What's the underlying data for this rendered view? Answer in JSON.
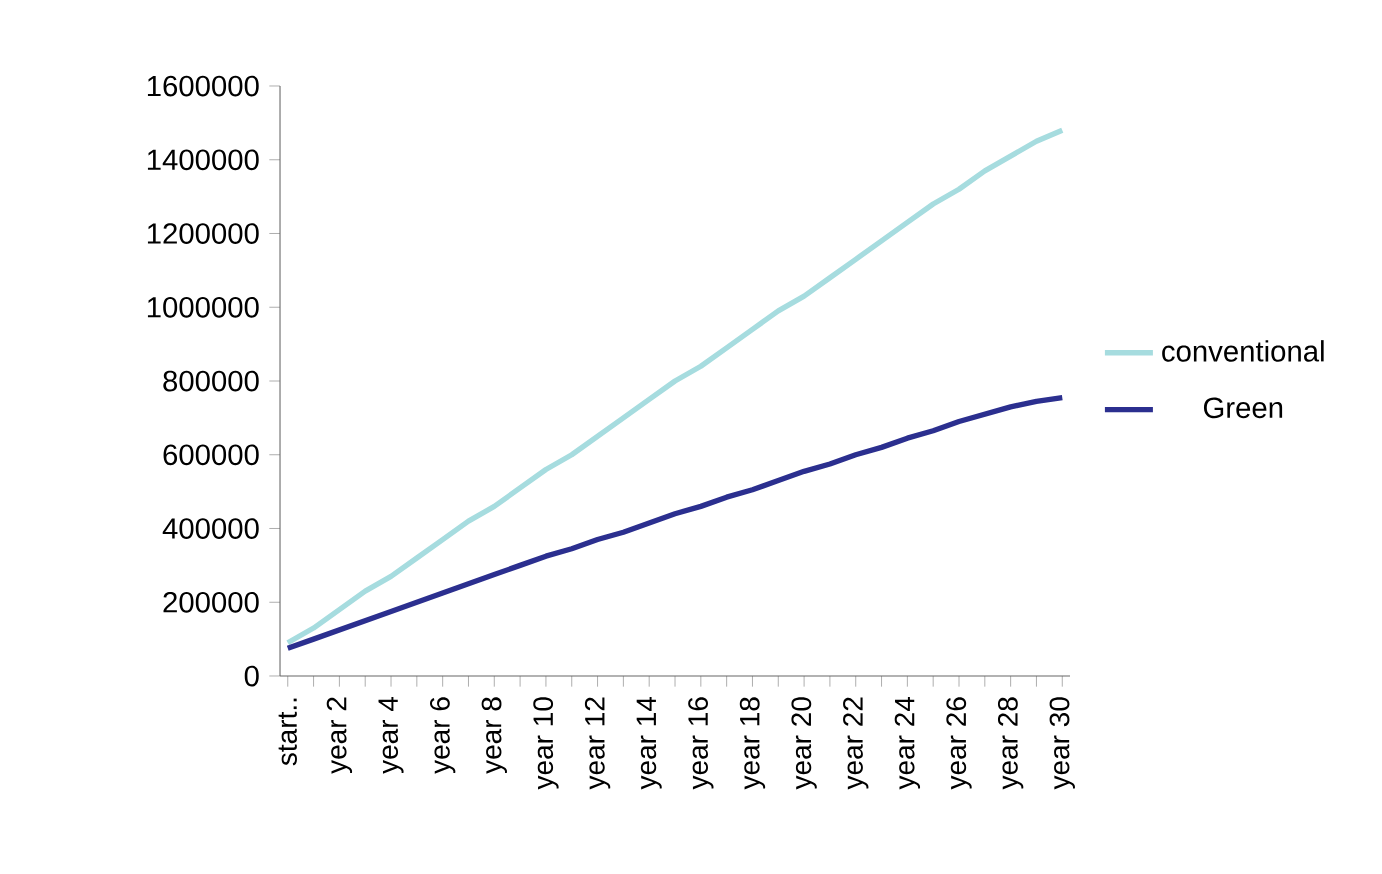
{
  "chart_data": {
    "type": "line",
    "categories": [
      "start..",
      null,
      "year 2",
      null,
      "year 4",
      null,
      "year 6",
      null,
      "year 8",
      null,
      "year 10",
      null,
      "year 12",
      null,
      "year 14",
      null,
      "year 16",
      null,
      "year 18",
      null,
      "year 20",
      null,
      "year 22",
      null,
      "year 24",
      null,
      "year 26",
      null,
      "year 28",
      null,
      "year 30"
    ],
    "series": [
      {
        "name": "conventional",
        "color": "#a6dcdf",
        "values": [
          90000,
          130000,
          180000,
          230000,
          270000,
          320000,
          370000,
          420000,
          460000,
          510000,
          560000,
          600000,
          650000,
          700000,
          750000,
          800000,
          840000,
          890000,
          940000,
          990000,
          1030000,
          1080000,
          1130000,
          1180000,
          1230000,
          1280000,
          1320000,
          1370000,
          1410000,
          1450000,
          1480000
        ]
      },
      {
        "name": "Green",
        "color": "#2b2f8f",
        "values": [
          75000,
          100000,
          125000,
          150000,
          175000,
          200000,
          225000,
          250000,
          275000,
          300000,
          325000,
          345000,
          370000,
          390000,
          415000,
          440000,
          460000,
          485000,
          505000,
          530000,
          555000,
          575000,
          600000,
          620000,
          645000,
          665000,
          690000,
          710000,
          730000,
          745000,
          755000
        ]
      }
    ],
    "ylim": [
      0,
      1600000
    ],
    "yticks": [
      0,
      200000,
      400000,
      600000,
      800000,
      1000000,
      1200000,
      1400000,
      1600000
    ],
    "legend": "right",
    "marker": "none",
    "line_style": "solid",
    "grid": false
  }
}
